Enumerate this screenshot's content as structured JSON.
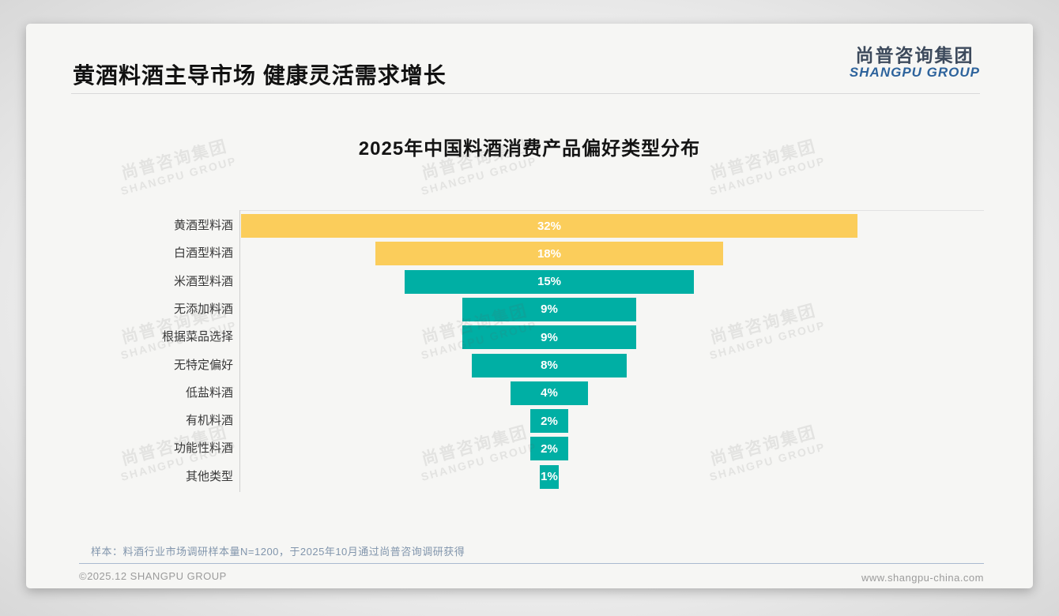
{
  "header": {
    "title": "黄酒料酒主导市场 健康灵活需求增长",
    "logo_cn": "尚普咨询集团",
    "logo_en": "SHANGPU GROUP"
  },
  "watermark": {
    "cn": "尚普咨询集团",
    "en": "SHANGPU GROUP"
  },
  "note": "样本：料酒行业市场调研样本量N=1200，于2025年10月通过尚普咨询调研获得",
  "footer": {
    "left": "©2025.12 SHANGPU GROUP",
    "right": "www.shangpu-china.com"
  },
  "chart_data": {
    "type": "bar",
    "title": "2025年中国料酒消费产品偏好类型分布",
    "orientation": "horizontal-centered-funnel",
    "categories": [
      "黄酒型料酒",
      "白酒型料酒",
      "米酒型料酒",
      "无添加料酒",
      "根据菜品选择",
      "无特定偏好",
      "低盐料酒",
      "有机料酒",
      "功能性料酒",
      "其他类型"
    ],
    "values": [
      32,
      18,
      15,
      9,
      9,
      8,
      4,
      2,
      2,
      1
    ],
    "labels": [
      "32%",
      "18%",
      "15%",
      "9%",
      "9%",
      "8%",
      "4%",
      "2%",
      "2%",
      "1%"
    ],
    "unit": "%",
    "xlim": [
      0,
      32
    ],
    "legend": "none",
    "grid": "off",
    "colors": {
      "highlight": "#FBCD5B",
      "default": "#00AFA4",
      "value_text": "#ffffff"
    },
    "highlight_count": 2
  }
}
